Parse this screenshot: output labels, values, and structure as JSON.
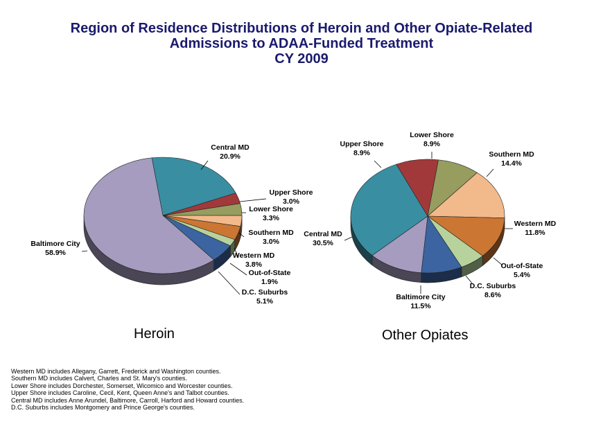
{
  "title": {
    "line1": "Region of Residence Distributions of Heroin and Other Opiate-Related",
    "line2": "Admissions to ADAA-Funded Treatment",
    "line3": "CY 2009"
  },
  "chart_data": [
    {
      "type": "pie",
      "title": "Heroin",
      "slices": [
        {
          "name": "Central MD",
          "value": 20.9,
          "label": "20.9%",
          "color": "#3a8ea2"
        },
        {
          "name": "Upper Shore",
          "value": 3.0,
          "label": "3.0%",
          "color": "#a1393b"
        },
        {
          "name": "Lower Shore",
          "value": 3.3,
          "label": "3.3%",
          "color": "#969d5f"
        },
        {
          "name": "Southern MD",
          "value": 3.0,
          "label": "3.0%",
          "color": "#f2b98b"
        },
        {
          "name": "Western MD",
          "value": 3.8,
          "label": "3.8%",
          "color": "#cc7634"
        },
        {
          "name": "Out-of-State",
          "value": 1.9,
          "label": "1.9%",
          "color": "#b7d29d"
        },
        {
          "name": "D.C. Suburbs",
          "value": 5.1,
          "label": "5.1%",
          "color": "#3b64a0"
        },
        {
          "name": "Baltimore City",
          "value": 58.9,
          "label": "58.9%",
          "color": "#a59cbf"
        }
      ]
    },
    {
      "type": "pie",
      "title": "Other Opiates",
      "slices": [
        {
          "name": "Lower Shore",
          "value": 8.9,
          "label": "8.9%",
          "color": "#969d5f"
        },
        {
          "name": "Southern MD",
          "value": 14.4,
          "label": "14.4%",
          "color": "#f2b98b"
        },
        {
          "name": "Western MD",
          "value": 11.8,
          "label": "11.8%",
          "color": "#cc7634"
        },
        {
          "name": "Out-of-State",
          "value": 5.4,
          "label": "5.4%",
          "color": "#b7d29d"
        },
        {
          "name": "D.C. Suburbs",
          "value": 8.6,
          "label": "8.6%",
          "color": "#3b64a0"
        },
        {
          "name": "Baltimore City",
          "value": 11.5,
          "label": "11.5%",
          "color": "#a59cbf"
        },
        {
          "name": "Central MD",
          "value": 30.5,
          "label": "30.5%",
          "color": "#3a8ea2"
        },
        {
          "name": "Upper Shore",
          "value": 8.9,
          "label": "8.9%",
          "color": "#a1393b"
        }
      ]
    }
  ],
  "footnotes": [
    "Western MD includes Allegany, Garrett, Frederick and Washington counties.",
    "Southern MD includes Calvert, Charles and St. Mary's counties.",
    "Lower Shore includes Dorchester, Somerset, Wicomico and Worcester counties.",
    "Upper Shore includes Caroline, Cecil, Kent, Queen Anne's and Talbot counties.",
    "Central MD includes Anne Arundel, Baltimore, Carroll, Harford and Howard counties.",
    "D.C. Suburbs includes Montgomery and Prince George's counties."
  ]
}
